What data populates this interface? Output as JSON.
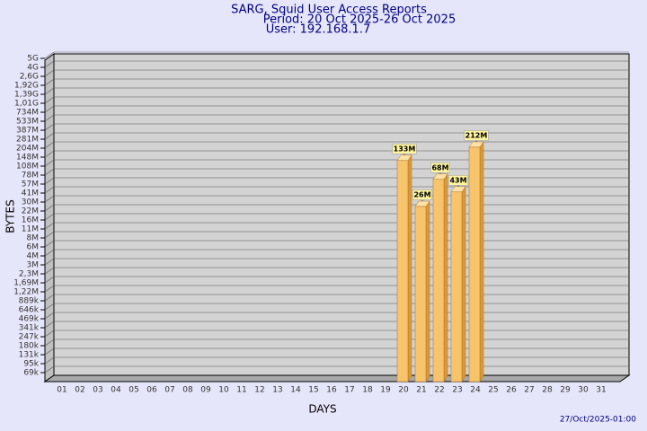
{
  "chart_data": {
    "type": "bar",
    "title": "SARG, Squid User Access Reports",
    "subtitle": "Period: 20 Oct 2025-26 Oct 2025",
    "user": "User: 192.168.1.7",
    "x_label": "DAYS",
    "y_label": "BYTES",
    "footer": "27/Oct/2025-01:00",
    "categories": [
      "01",
      "02",
      "03",
      "04",
      "05",
      "06",
      "07",
      "08",
      "09",
      "10",
      "11",
      "12",
      "13",
      "14",
      "15",
      "16",
      "17",
      "18",
      "19",
      "20",
      "21",
      "22",
      "23",
      "24",
      "25",
      "26",
      "27",
      "28",
      "29",
      "30",
      "31"
    ],
    "values": [
      null,
      null,
      null,
      null,
      null,
      null,
      null,
      null,
      null,
      null,
      null,
      null,
      null,
      null,
      null,
      null,
      null,
      null,
      null,
      133000000,
      26000000,
      68000000,
      43000000,
      212000000,
      null,
      null,
      null,
      null,
      null,
      null,
      null
    ],
    "value_labels": [
      null,
      null,
      null,
      null,
      null,
      null,
      null,
      null,
      null,
      null,
      null,
      null,
      null,
      null,
      null,
      null,
      null,
      null,
      null,
      "133M",
      "26M",
      "68M",
      "43M",
      "212M",
      null,
      null,
      null,
      null,
      null,
      null,
      null
    ],
    "color": "#f7c46c",
    "ylim": [
      0,
      5000000000
    ],
    "yticks": [
      {
        "value": 5000000000,
        "label": "5G"
      },
      {
        "value": 4000000000,
        "label": "4G"
      },
      {
        "value": 2600000000,
        "label": "2,6G"
      },
      {
        "value": 1920000000,
        "label": "1,92G"
      },
      {
        "value": 1390000000,
        "label": "1,39G"
      },
      {
        "value": 1010000000,
        "label": "1,01G"
      },
      {
        "value": 734000000,
        "label": "734M"
      },
      {
        "value": 533000000,
        "label": "533M"
      },
      {
        "value": 387000000,
        "label": "387M"
      },
      {
        "value": 281000000,
        "label": "281M"
      },
      {
        "value": 204000000,
        "label": "204M"
      },
      {
        "value": 148000000,
        "label": "148M"
      },
      {
        "value": 108000000,
        "label": "108M"
      },
      {
        "value": 78000000,
        "label": "78M"
      },
      {
        "value": 57000000,
        "label": "57M"
      },
      {
        "value": 41000000,
        "label": "41M"
      },
      {
        "value": 30000000,
        "label": "30M"
      },
      {
        "value": 22000000,
        "label": "22M"
      },
      {
        "value": 16000000,
        "label": "16M"
      },
      {
        "value": 11000000,
        "label": "11M"
      },
      {
        "value": 8000000,
        "label": "8M"
      },
      {
        "value": 6000000,
        "label": "6M"
      },
      {
        "value": 4000000,
        "label": "4M"
      },
      {
        "value": 3000000,
        "label": "3M"
      },
      {
        "value": 2300000,
        "label": "2,3M"
      },
      {
        "value": 1690000,
        "label": "1,69M"
      },
      {
        "value": 1220000,
        "label": "1,22M"
      },
      {
        "value": 889000,
        "label": "889k"
      },
      {
        "value": 646000,
        "label": "646k"
      },
      {
        "value": 469000,
        "label": "469k"
      },
      {
        "value": 341000,
        "label": "341k"
      },
      {
        "value": 247000,
        "label": "247k"
      },
      {
        "value": 180000,
        "label": "180k"
      },
      {
        "value": 131000,
        "label": "131k"
      },
      {
        "value": 95000,
        "label": "95k"
      },
      {
        "value": 69000,
        "label": "69k"
      }
    ],
    "grid": true
  }
}
